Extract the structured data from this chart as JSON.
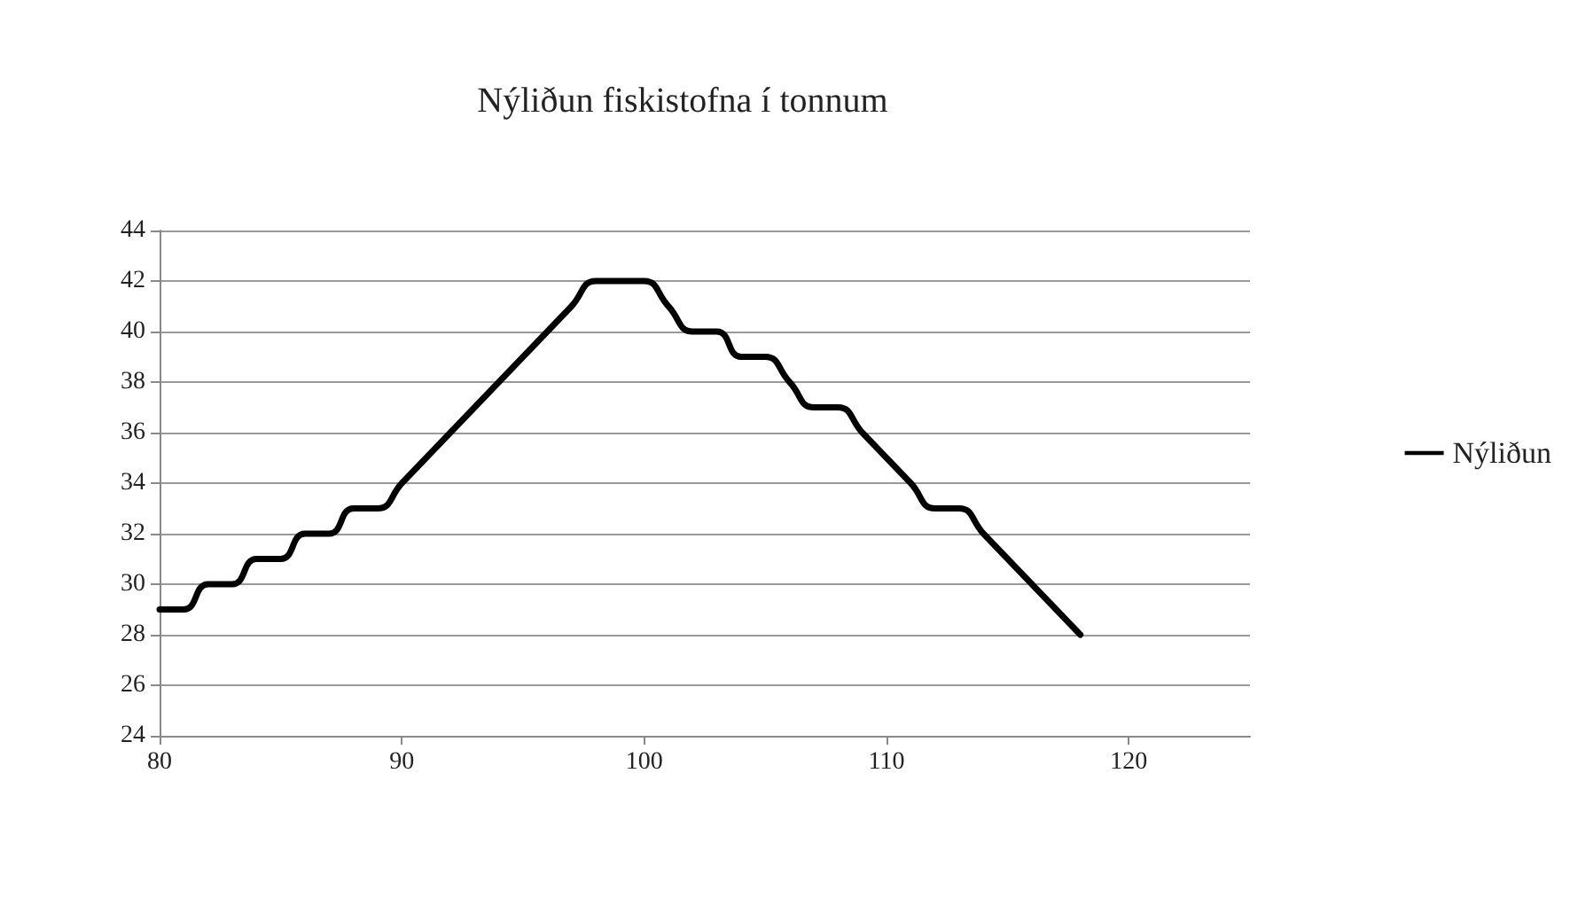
{
  "chart_data": {
    "type": "line",
    "title": "Nýliðun fiskistofna í tonnum",
    "x": [
      80,
      81,
      82,
      83,
      84,
      85,
      86,
      87,
      88,
      89,
      90,
      91,
      92,
      93,
      94,
      95,
      96,
      97,
      98,
      99,
      100,
      101,
      102,
      103,
      104,
      105,
      106,
      107,
      108,
      109,
      110,
      111,
      112,
      113,
      114,
      115,
      116,
      117,
      118
    ],
    "series": [
      {
        "name": "Nýliðun",
        "color": "#000000",
        "values": [
          29,
          29,
          30,
          30,
          31,
          31,
          32,
          32,
          33,
          33,
          34,
          35,
          36,
          37,
          38,
          39,
          40,
          41,
          42,
          42,
          42,
          41,
          40,
          40,
          39,
          39,
          38,
          37,
          37,
          36,
          35,
          34,
          33,
          33,
          32,
          31,
          30,
          29,
          28
        ]
      }
    ],
    "xlim": [
      80,
      125
    ],
    "xticks": [
      80,
      90,
      100,
      110,
      120
    ],
    "ylim": [
      24,
      44
    ],
    "yticks": [
      24,
      26,
      28,
      30,
      32,
      34,
      36,
      38,
      40,
      42,
      44
    ],
    "grid": "y",
    "legend": "right",
    "marker": "none",
    "line_style": "solid"
  }
}
